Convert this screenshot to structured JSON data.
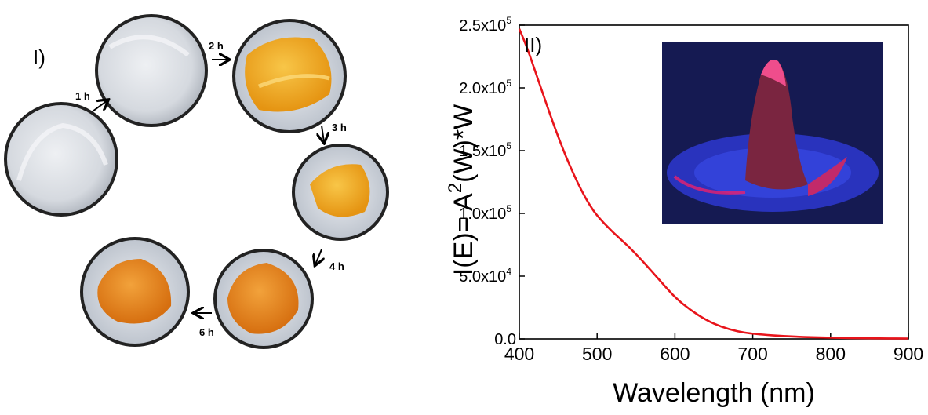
{
  "panel_labels": {
    "left": "I)",
    "right": "II)"
  },
  "time_steps": [
    {
      "id": "1h",
      "label": "1 h"
    },
    {
      "id": "2h",
      "label": "2 h"
    },
    {
      "id": "3h",
      "label": "3 h"
    },
    {
      "id": "4h",
      "label": "4 h"
    },
    {
      "id": "6h",
      "label": "6 h"
    }
  ],
  "colors": {
    "curve": "#e8141b",
    "white_powder": "#dadde2",
    "yellow_gel": "#f3a91e",
    "orange_gel": "#ec8a1c",
    "dish_rim": "#222222",
    "inset_background": "#2832b8",
    "inset_glow": "#e8206e"
  },
  "chart_data": {
    "type": "line",
    "xlabel": "Wavelength (nm)",
    "ylabel_parts": {
      "base": "I(E)= A",
      "sup": "2",
      "rest": "(W)*W"
    },
    "xlim": [
      400,
      900
    ],
    "ylim": [
      0,
      250000
    ],
    "x_ticks": [
      "400",
      "500",
      "600",
      "700",
      "800",
      "900"
    ],
    "y_ticks": [
      {
        "mantissa": "0.0",
        "exp": ""
      },
      {
        "mantissa": "5.0x10",
        "exp": "4"
      },
      {
        "mantissa": "1.0x10",
        "exp": "5"
      },
      {
        "mantissa": "1.5x10",
        "exp": "5"
      },
      {
        "mantissa": "2.0x10",
        "exp": "5"
      },
      {
        "mantissa": "2.5x10",
        "exp": "5"
      }
    ],
    "y_tick_values": [
      0,
      50000,
      100000,
      150000,
      200000,
      250000
    ],
    "series": [
      {
        "x": [
          400,
          410,
          420,
          430,
          440,
          450,
          460,
          470,
          480,
          490,
          500,
          520,
          540,
          560,
          580,
          600,
          620,
          640,
          660,
          680,
          700,
          750,
          800,
          850,
          900
        ],
        "values": [
          247000,
          232000,
          214000,
          196000,
          178000,
          161000,
          145000,
          131000,
          118000,
          107000,
          98000,
          85000,
          74000,
          61000,
          47000,
          33000,
          23000,
          15000,
          9500,
          6000,
          4000,
          1800,
          900,
          500,
          300
        ]
      }
    ],
    "grid": false,
    "has_inset_photo": true
  }
}
